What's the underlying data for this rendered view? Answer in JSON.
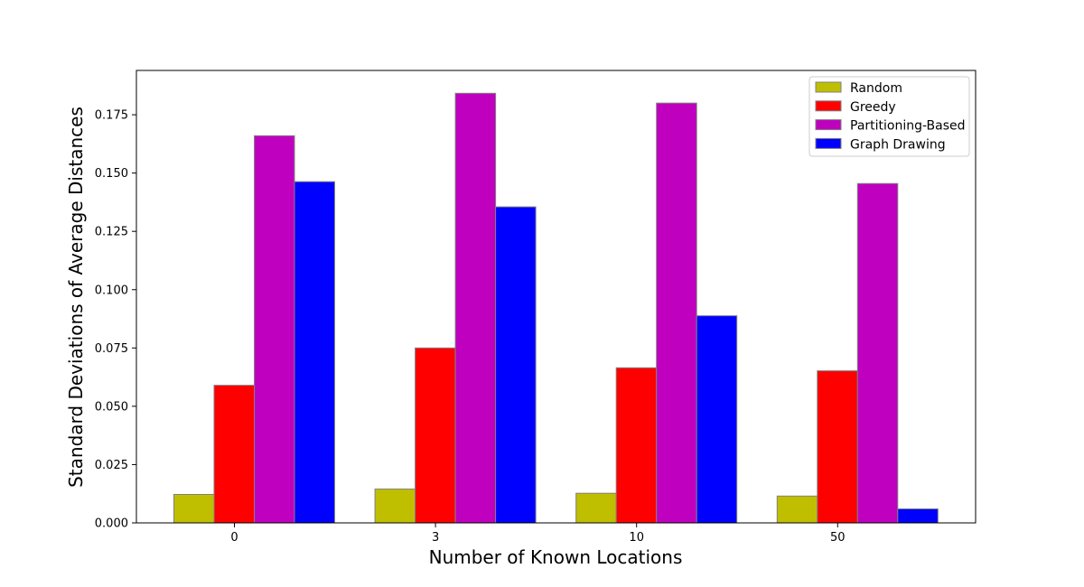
{
  "chart_data": {
    "type": "bar",
    "title": "",
    "xlabel": "Number of Known Locations",
    "ylabel": "Standard Deviations of Average Distances",
    "categories": [
      "0",
      "3",
      "10",
      "50"
    ],
    "ylim": [
      0,
      0.194
    ],
    "yticks": [
      "0.000",
      "0.025",
      "0.050",
      "0.075",
      "0.100",
      "0.125",
      "0.150",
      "0.175"
    ],
    "legend_position": "top-right",
    "grid": false,
    "series": [
      {
        "name": "Random",
        "color": "#bfbf00",
        "values": [
          0.0122,
          0.0145,
          0.0127,
          0.0115
        ]
      },
      {
        "name": "Greedy",
        "color": "#ff0000",
        "values": [
          0.059,
          0.075,
          0.0665,
          0.0652
        ]
      },
      {
        "name": "Partitioning-Based",
        "color": "#bf00bf",
        "values": [
          0.166,
          0.1842,
          0.18,
          0.1455
        ]
      },
      {
        "name": "Graph Drawing",
        "color": "#0000ff",
        "values": [
          0.1463,
          0.1355,
          0.0888,
          0.006
        ]
      }
    ]
  }
}
